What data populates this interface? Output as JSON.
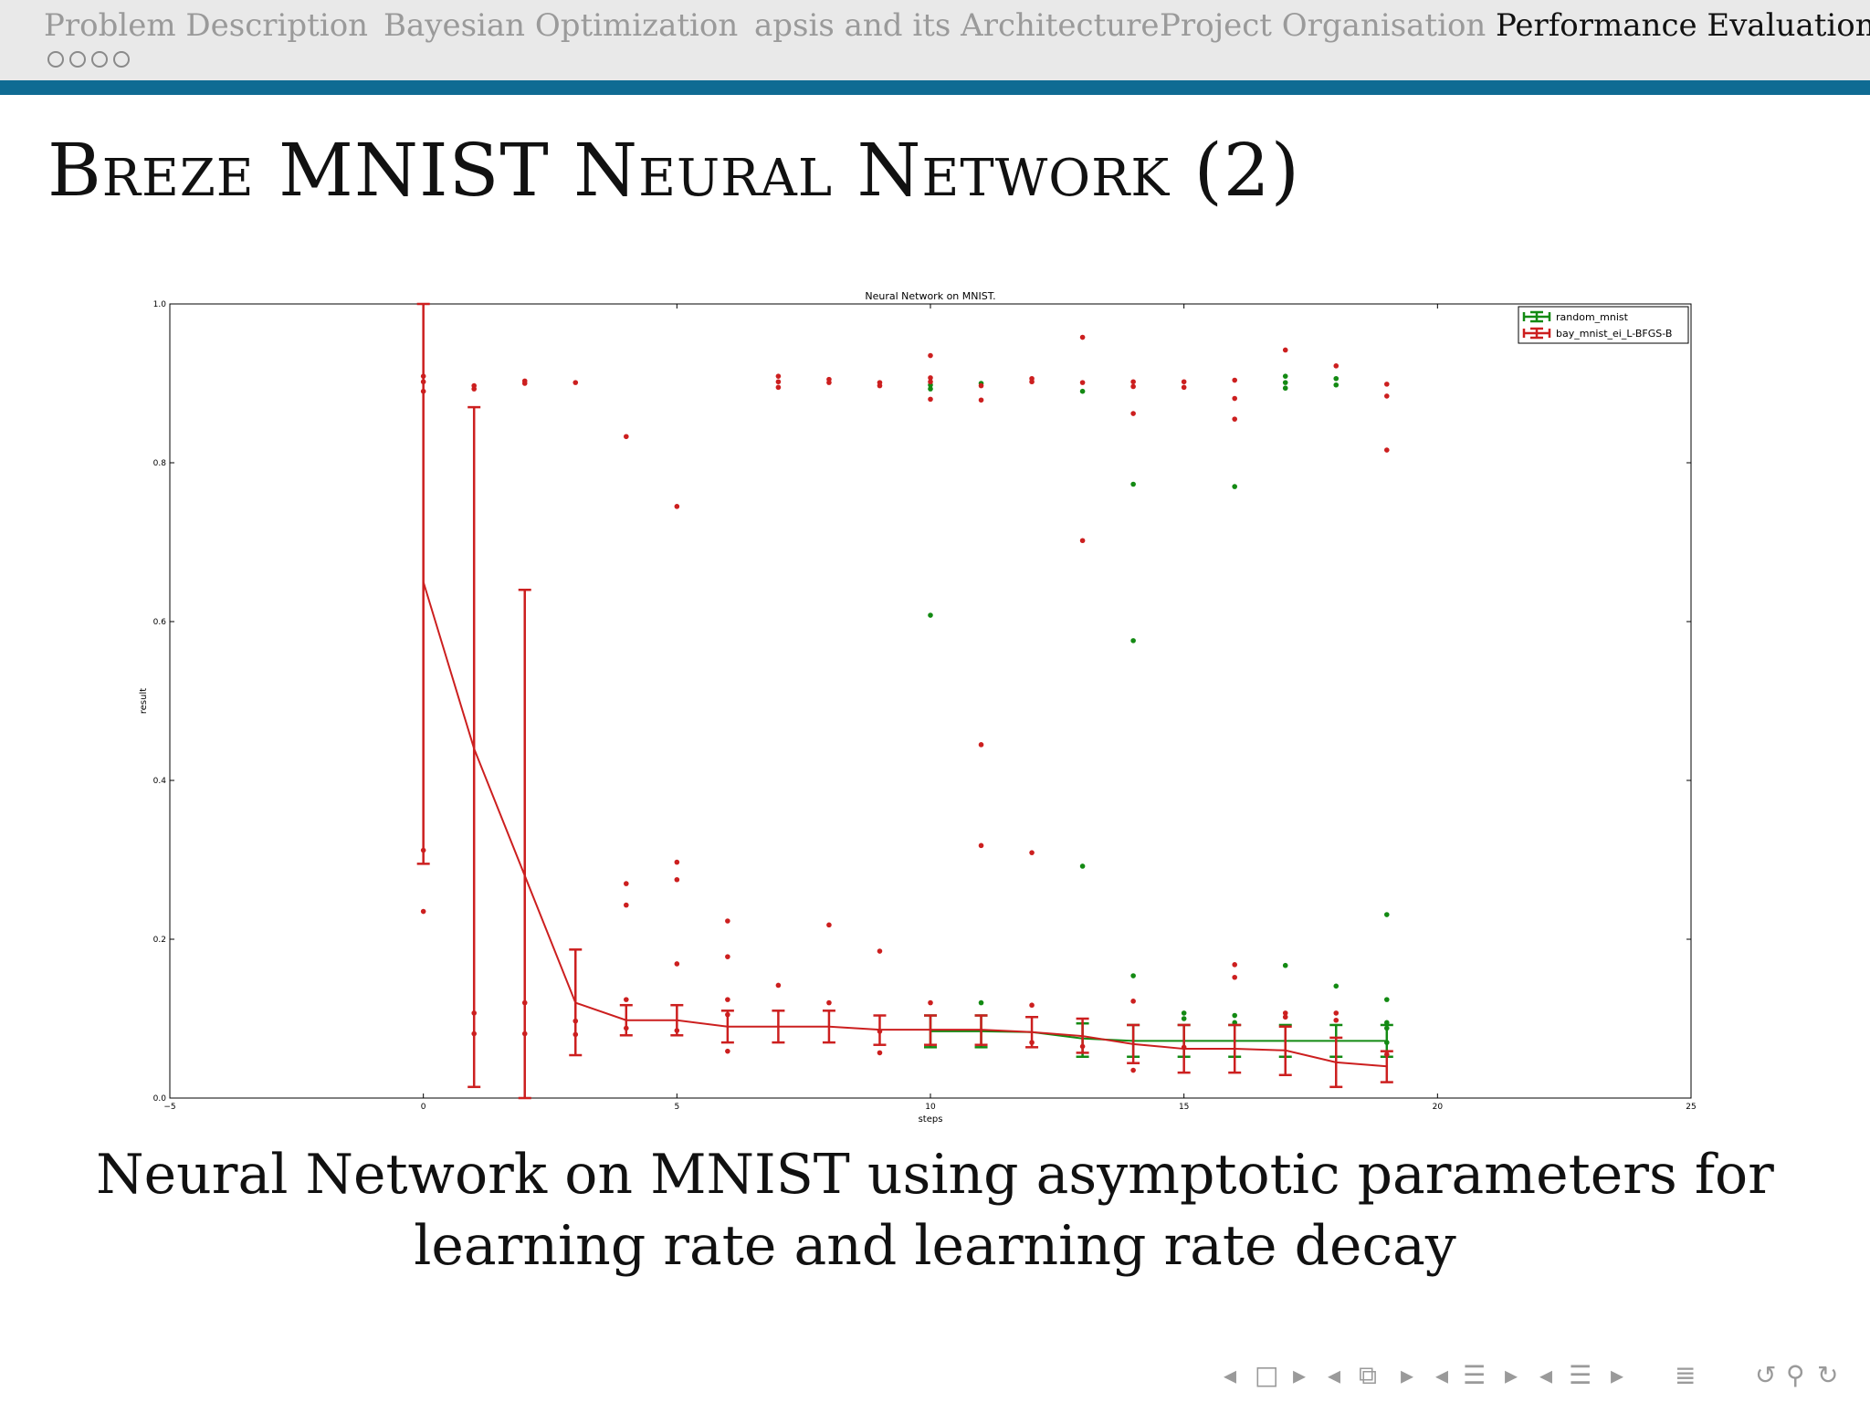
{
  "nav": {
    "sections": [
      {
        "label": "Problem Description",
        "active": false
      },
      {
        "label": "Bayesian Optimization",
        "active": false
      },
      {
        "label": "apsis and its Architecture",
        "active": false
      },
      {
        "label": "Project Organisation",
        "active": false
      },
      {
        "label": "Performance Evaluation",
        "active": true
      }
    ],
    "subsection_dots": 4
  },
  "slide": {
    "title": "Breze MNIST Neural Network (2)",
    "caption_line1": "Neural Network on MNIST using asymptotic parameters for",
    "caption_line2": "learning rate and learning rate decay"
  },
  "colors": {
    "nav_rule": "#0f6b93",
    "random_series": "#138a13",
    "bayes_series": "#cc1f1f"
  },
  "chart_data": {
    "type": "scatter",
    "title": "Neural Network on MNIST.",
    "xlabel": "steps",
    "ylabel": "result",
    "xlim": [
      -5,
      25
    ],
    "ylim": [
      0.0,
      1.0
    ],
    "xticks": [
      "−5",
      "0",
      "5",
      "10",
      "15",
      "20",
      "25"
    ],
    "yticks": [
      "0.0",
      "0.2",
      "0.4",
      "0.6",
      "0.8",
      "1.0"
    ],
    "grid": false,
    "legend_position": "top-right",
    "series": [
      {
        "name": "random_mnist",
        "color": "#138a13",
        "mean_line": [
          {
            "x": 10,
            "y": 0.084
          },
          {
            "x": 11,
            "y": 0.084
          },
          {
            "x": 12,
            "y": 0.083
          },
          {
            "x": 13,
            "y": 0.075
          },
          {
            "x": 14,
            "y": 0.072
          },
          {
            "x": 15,
            "y": 0.072
          },
          {
            "x": 16,
            "y": 0.072
          },
          {
            "x": 17,
            "y": 0.072
          },
          {
            "x": 18,
            "y": 0.072
          },
          {
            "x": 19,
            "y": 0.072
          }
        ],
        "error_bars": [
          {
            "x": 10,
            "low": 0.064,
            "high": 0.104
          },
          {
            "x": 11,
            "low": 0.064,
            "high": 0.104
          },
          {
            "x": 13,
            "low": 0.052,
            "high": 0.094
          },
          {
            "x": 14,
            "low": 0.052,
            "high": 0.092
          },
          {
            "x": 15,
            "low": 0.052,
            "high": 0.092
          },
          {
            "x": 16,
            "low": 0.052,
            "high": 0.092
          },
          {
            "x": 17,
            "low": 0.052,
            "high": 0.092
          },
          {
            "x": 18,
            "low": 0.052,
            "high": 0.092
          },
          {
            "x": 19,
            "low": 0.052,
            "high": 0.092
          }
        ],
        "points": [
          {
            "x": 10,
            "y": 0.608
          },
          {
            "x": 10,
            "y": 0.893
          },
          {
            "x": 10,
            "y": 0.898
          },
          {
            "x": 11,
            "y": 0.9
          },
          {
            "x": 11,
            "y": 0.12
          },
          {
            "x": 13,
            "y": 0.292
          },
          {
            "x": 13,
            "y": 0.89
          },
          {
            "x": 14,
            "y": 0.773
          },
          {
            "x": 14,
            "y": 0.576
          },
          {
            "x": 14,
            "y": 0.154
          },
          {
            "x": 15,
            "y": 0.107
          },
          {
            "x": 15,
            "y": 0.1
          },
          {
            "x": 16,
            "y": 0.77
          },
          {
            "x": 16,
            "y": 0.104
          },
          {
            "x": 16,
            "y": 0.095
          },
          {
            "x": 17,
            "y": 0.909
          },
          {
            "x": 17,
            "y": 0.901
          },
          {
            "x": 17,
            "y": 0.894
          },
          {
            "x": 17,
            "y": 0.167
          },
          {
            "x": 18,
            "y": 0.906
          },
          {
            "x": 18,
            "y": 0.898
          },
          {
            "x": 18,
            "y": 0.141
          },
          {
            "x": 19,
            "y": 0.231
          },
          {
            "x": 19,
            "y": 0.124
          },
          {
            "x": 19,
            "y": 0.095
          },
          {
            "x": 19,
            "y": 0.088
          },
          {
            "x": 19,
            "y": 0.07
          }
        ]
      },
      {
        "name": "bay_mnist_ei_L-BFGS-B",
        "color": "#cc1f1f",
        "mean_line": [
          {
            "x": 0,
            "y": 0.65
          },
          {
            "x": 1,
            "y": 0.44
          },
          {
            "x": 2,
            "y": 0.28
          },
          {
            "x": 3,
            "y": 0.12
          },
          {
            "x": 4,
            "y": 0.098
          },
          {
            "x": 5,
            "y": 0.098
          },
          {
            "x": 6,
            "y": 0.09
          },
          {
            "x": 7,
            "y": 0.09
          },
          {
            "x": 8,
            "y": 0.09
          },
          {
            "x": 9,
            "y": 0.086
          },
          {
            "x": 10,
            "y": 0.086
          },
          {
            "x": 11,
            "y": 0.086
          },
          {
            "x": 12,
            "y": 0.083
          },
          {
            "x": 13,
            "y": 0.078
          },
          {
            "x": 14,
            "y": 0.068
          },
          {
            "x": 15,
            "y": 0.062
          },
          {
            "x": 16,
            "y": 0.062
          },
          {
            "x": 17,
            "y": 0.06
          },
          {
            "x": 18,
            "y": 0.045
          },
          {
            "x": 19,
            "y": 0.04
          }
        ],
        "error_bars": [
          {
            "x": 0,
            "low": 0.295,
            "high": 1.0
          },
          {
            "x": 1,
            "low": 0.014,
            "high": 0.87
          },
          {
            "x": 2,
            "low": 0.0,
            "high": 0.64
          },
          {
            "x": 3,
            "low": 0.054,
            "high": 0.187
          },
          {
            "x": 4,
            "low": 0.079,
            "high": 0.117
          },
          {
            "x": 5,
            "low": 0.079,
            "high": 0.117
          },
          {
            "x": 6,
            "low": 0.07,
            "high": 0.11
          },
          {
            "x": 7,
            "low": 0.07,
            "high": 0.11
          },
          {
            "x": 8,
            "low": 0.07,
            "high": 0.11
          },
          {
            "x": 9,
            "low": 0.067,
            "high": 0.104
          },
          {
            "x": 10,
            "low": 0.067,
            "high": 0.104
          },
          {
            "x": 11,
            "low": 0.067,
            "high": 0.104
          },
          {
            "x": 12,
            "low": 0.064,
            "high": 0.102
          },
          {
            "x": 13,
            "low": 0.057,
            "high": 0.1
          },
          {
            "x": 14,
            "low": 0.044,
            "high": 0.092
          },
          {
            "x": 15,
            "low": 0.032,
            "high": 0.092
          },
          {
            "x": 16,
            "low": 0.032,
            "high": 0.092
          },
          {
            "x": 17,
            "low": 0.029,
            "high": 0.09
          },
          {
            "x": 18,
            "low": 0.014,
            "high": 0.076
          },
          {
            "x": 19,
            "low": 0.02,
            "high": 0.059
          }
        ],
        "points": [
          {
            "x": 0,
            "y": 0.909
          },
          {
            "x": 0,
            "y": 0.902
          },
          {
            "x": 0,
            "y": 0.89
          },
          {
            "x": 0,
            "y": 0.312
          },
          {
            "x": 0,
            "y": 0.235
          },
          {
            "x": 1,
            "y": 0.897
          },
          {
            "x": 1,
            "y": 0.893
          },
          {
            "x": 1,
            "y": 0.107
          },
          {
            "x": 1,
            "y": 0.081
          },
          {
            "x": 2,
            "y": 0.903
          },
          {
            "x": 2,
            "y": 0.9
          },
          {
            "x": 2,
            "y": 0.12
          },
          {
            "x": 2,
            "y": 0.081
          },
          {
            "x": 3,
            "y": 0.901
          },
          {
            "x": 3,
            "y": 0.097
          },
          {
            "x": 3,
            "y": 0.08
          },
          {
            "x": 4,
            "y": 0.833
          },
          {
            "x": 4,
            "y": 0.27
          },
          {
            "x": 4,
            "y": 0.243
          },
          {
            "x": 4,
            "y": 0.124
          },
          {
            "x": 4,
            "y": 0.088
          },
          {
            "x": 5,
            "y": 0.745
          },
          {
            "x": 5,
            "y": 0.297
          },
          {
            "x": 5,
            "y": 0.275
          },
          {
            "x": 5,
            "y": 0.169
          },
          {
            "x": 5,
            "y": 0.085
          },
          {
            "x": 6,
            "y": 0.223
          },
          {
            "x": 6,
            "y": 0.178
          },
          {
            "x": 6,
            "y": 0.124
          },
          {
            "x": 6,
            "y": 0.105
          },
          {
            "x": 6,
            "y": 0.059
          },
          {
            "x": 7,
            "y": 0.909
          },
          {
            "x": 7,
            "y": 0.902
          },
          {
            "x": 7,
            "y": 0.895
          },
          {
            "x": 7,
            "y": 0.142
          },
          {
            "x": 8,
            "y": 0.905
          },
          {
            "x": 8,
            "y": 0.901
          },
          {
            "x": 8,
            "y": 0.218
          },
          {
            "x": 8,
            "y": 0.12
          },
          {
            "x": 9,
            "y": 0.901
          },
          {
            "x": 9,
            "y": 0.897
          },
          {
            "x": 9,
            "y": 0.185
          },
          {
            "x": 9,
            "y": 0.084
          },
          {
            "x": 9,
            "y": 0.057
          },
          {
            "x": 10,
            "y": 0.935
          },
          {
            "x": 10,
            "y": 0.907
          },
          {
            "x": 10,
            "y": 0.902
          },
          {
            "x": 10,
            "y": 0.88
          },
          {
            "x": 10,
            "y": 0.12
          },
          {
            "x": 11,
            "y": 0.897
          },
          {
            "x": 11,
            "y": 0.879
          },
          {
            "x": 11,
            "y": 0.445
          },
          {
            "x": 11,
            "y": 0.318
          },
          {
            "x": 12,
            "y": 0.906
          },
          {
            "x": 12,
            "y": 0.902
          },
          {
            "x": 12,
            "y": 0.309
          },
          {
            "x": 12,
            "y": 0.117
          },
          {
            "x": 12,
            "y": 0.07
          },
          {
            "x": 13,
            "y": 0.958
          },
          {
            "x": 13,
            "y": 0.901
          },
          {
            "x": 13,
            "y": 0.702
          },
          {
            "x": 13,
            "y": 0.065
          },
          {
            "x": 14,
            "y": 0.902
          },
          {
            "x": 14,
            "y": 0.896
          },
          {
            "x": 14,
            "y": 0.862
          },
          {
            "x": 14,
            "y": 0.122
          },
          {
            "x": 14,
            "y": 0.035
          },
          {
            "x": 15,
            "y": 0.902
          },
          {
            "x": 15,
            "y": 0.895
          },
          {
            "x": 15,
            "y": 0.064
          },
          {
            "x": 16,
            "y": 0.904
          },
          {
            "x": 16,
            "y": 0.881
          },
          {
            "x": 16,
            "y": 0.855
          },
          {
            "x": 16,
            "y": 0.168
          },
          {
            "x": 16,
            "y": 0.152
          },
          {
            "x": 17,
            "y": 0.942
          },
          {
            "x": 17,
            "y": 0.107
          },
          {
            "x": 17,
            "y": 0.102
          },
          {
            "x": 18,
            "y": 0.922
          },
          {
            "x": 18,
            "y": 0.107
          },
          {
            "x": 18,
            "y": 0.098
          },
          {
            "x": 19,
            "y": 0.899
          },
          {
            "x": 19,
            "y": 0.884
          },
          {
            "x": 19,
            "y": 0.816
          },
          {
            "x": 19,
            "y": 0.055
          }
        ]
      }
    ]
  },
  "controls": {
    "icons": [
      "arrow-left-icon",
      "frame-icon",
      "arrow-right-icon",
      "arrow-left-icon",
      "subsection-icon",
      "arrow-right-icon",
      "arrow-left-icon",
      "section-icon",
      "arrow-right-icon",
      "arrow-left-icon",
      "outline-icon",
      "arrow-right-icon",
      "toc-icon",
      "undo-icon",
      "search-icon",
      "redo-icon"
    ]
  }
}
